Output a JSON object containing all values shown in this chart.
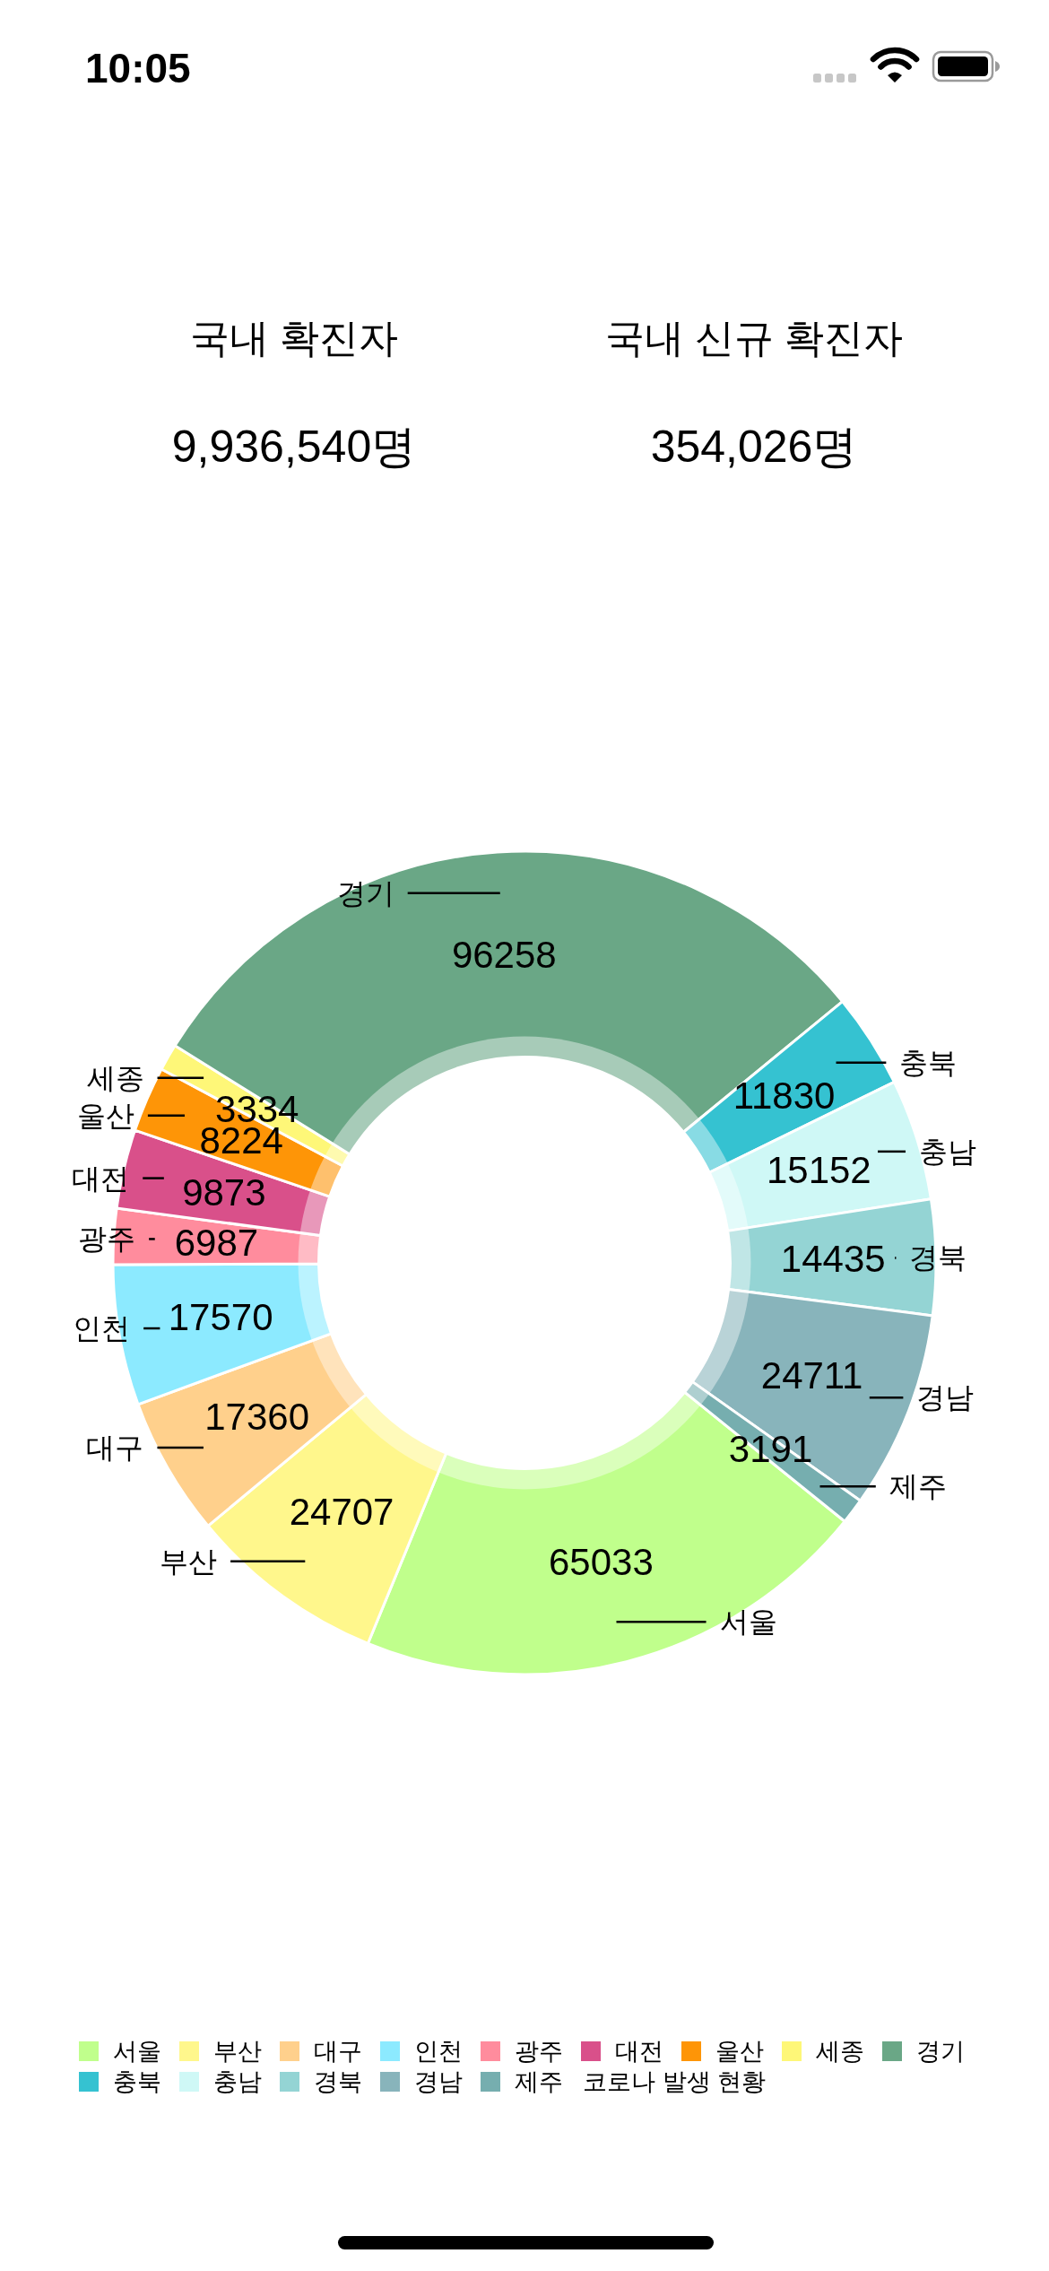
{
  "chart_data": [
    {
      "type": "other",
      "annotations": [
        "10:05",
        "국내 확진자",
        "9,936,540명",
        "국내 신규 확진자",
        "354,026명"
      ]
    },
    {
      "type": "donut",
      "categories": [
        "서울",
        "부산",
        "대구",
        "인천",
        "광주",
        "대전",
        "울산",
        "세종",
        "경기",
        "충북",
        "충남",
        "경북",
        "경남",
        "제주"
      ],
      "values": [
        65033,
        24707,
        17360,
        17570,
        6987,
        9873,
        8224,
        3334,
        96258,
        11830,
        15152,
        14435,
        24711,
        3191
      ],
      "colors": [
        "#c0ff8c",
        "#fff78c",
        "#ffd08c",
        "#8ceaff",
        "#ff8c9d",
        "#d9508a",
        "#fe9507",
        "#fef778",
        "#6aa786",
        "#35c2d1",
        "#cff8f6",
        "#94d4d4",
        "#88b4bb",
        "#76aeaf"
      ],
      "data_labels": true,
      "legend": "bottom",
      "legend_title": "코로나 발생 현황"
    }
  ]
}
